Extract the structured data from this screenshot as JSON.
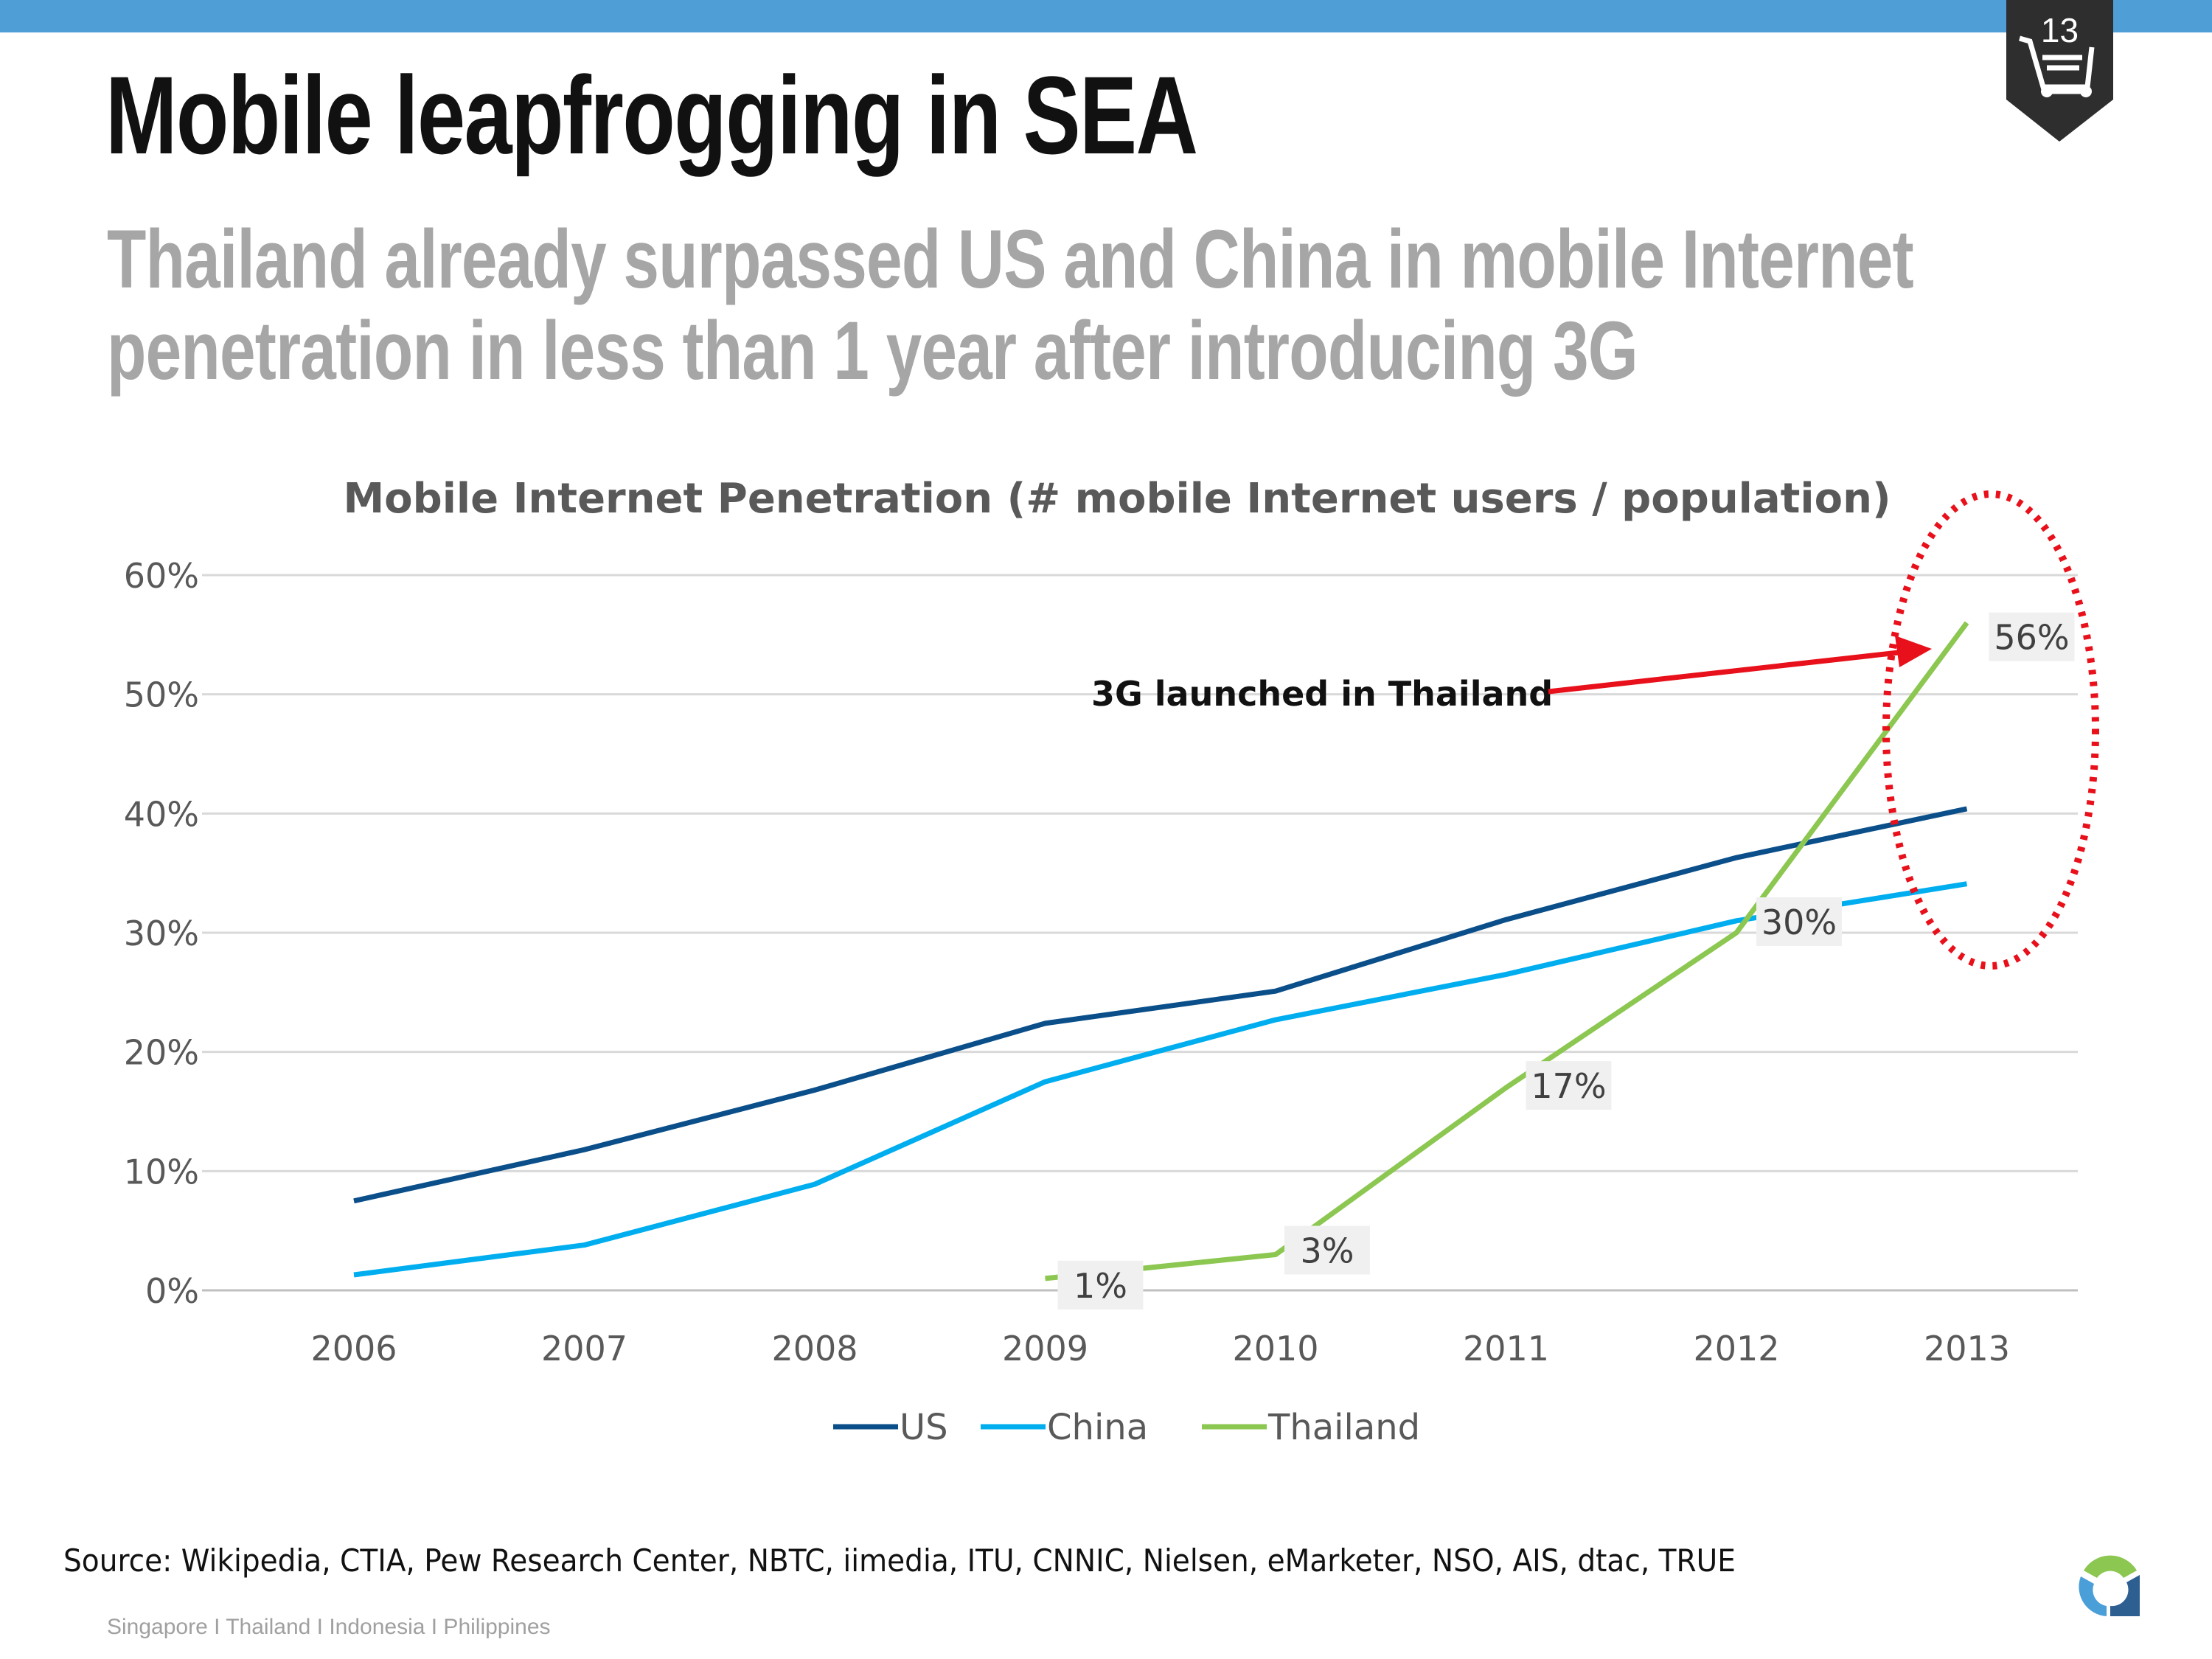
{
  "header": {
    "title": "Mobile leapfrogging in SEA",
    "subtitle_line1": "Thailand already surpassed US and China in mobile Internet",
    "subtitle_line2": "penetration in less than 1 year after introducing 3G",
    "page_number": "13",
    "badge_icon": "shopping-cart-icon"
  },
  "colors": {
    "bar": "#4f9fd6",
    "us": "#0b4f8a",
    "china": "#00aeef",
    "thailand": "#8cc751",
    "annotation": "#e8101a"
  },
  "chart_data": {
    "type": "line",
    "title": "Mobile Internet Penetration (# mobile Internet users / population)",
    "xlabel": "",
    "ylabel": "",
    "categories": [
      "2006",
      "2007",
      "2008",
      "2009",
      "2010",
      "2011",
      "2012",
      "2013"
    ],
    "ylim": [
      0,
      60
    ],
    "yticks": [
      "0%",
      "10%",
      "20%",
      "30%",
      "40%",
      "50%",
      "60%"
    ],
    "grid": true,
    "legend_position": "bottom",
    "series": [
      {
        "name": "US",
        "values": [
          7.5,
          11.8,
          16.8,
          22.4,
          25.1,
          31.1,
          36.3,
          40.4
        ]
      },
      {
        "name": "China",
        "values": [
          1.3,
          3.8,
          8.9,
          17.5,
          22.7,
          26.5,
          31.0,
          34.1
        ]
      },
      {
        "name": "Thailand",
        "values": [
          null,
          null,
          null,
          1,
          3,
          17,
          30,
          56
        ]
      }
    ],
    "data_labels": [
      {
        "series": "Thailand",
        "category": "2009",
        "text": "1%"
      },
      {
        "series": "Thailand",
        "category": "2010",
        "text": "3%"
      },
      {
        "series": "Thailand",
        "category": "2011",
        "text": "17%"
      },
      {
        "series": "Thailand",
        "category": "2012",
        "text": "30%"
      },
      {
        "series": "Thailand",
        "category": "2013",
        "text": "56%"
      }
    ],
    "annotation": "3G launched in Thailand"
  },
  "source": "Source: Wikipedia, CTIA, Pew Research Center, NBTC, iimedia, ITU, CNNIC, Nielsen, eMarketer, NSO, AIS, dtac, TRUE",
  "footer": "Singapore  I  Thailand  I  Indonesia  I  Philippines"
}
